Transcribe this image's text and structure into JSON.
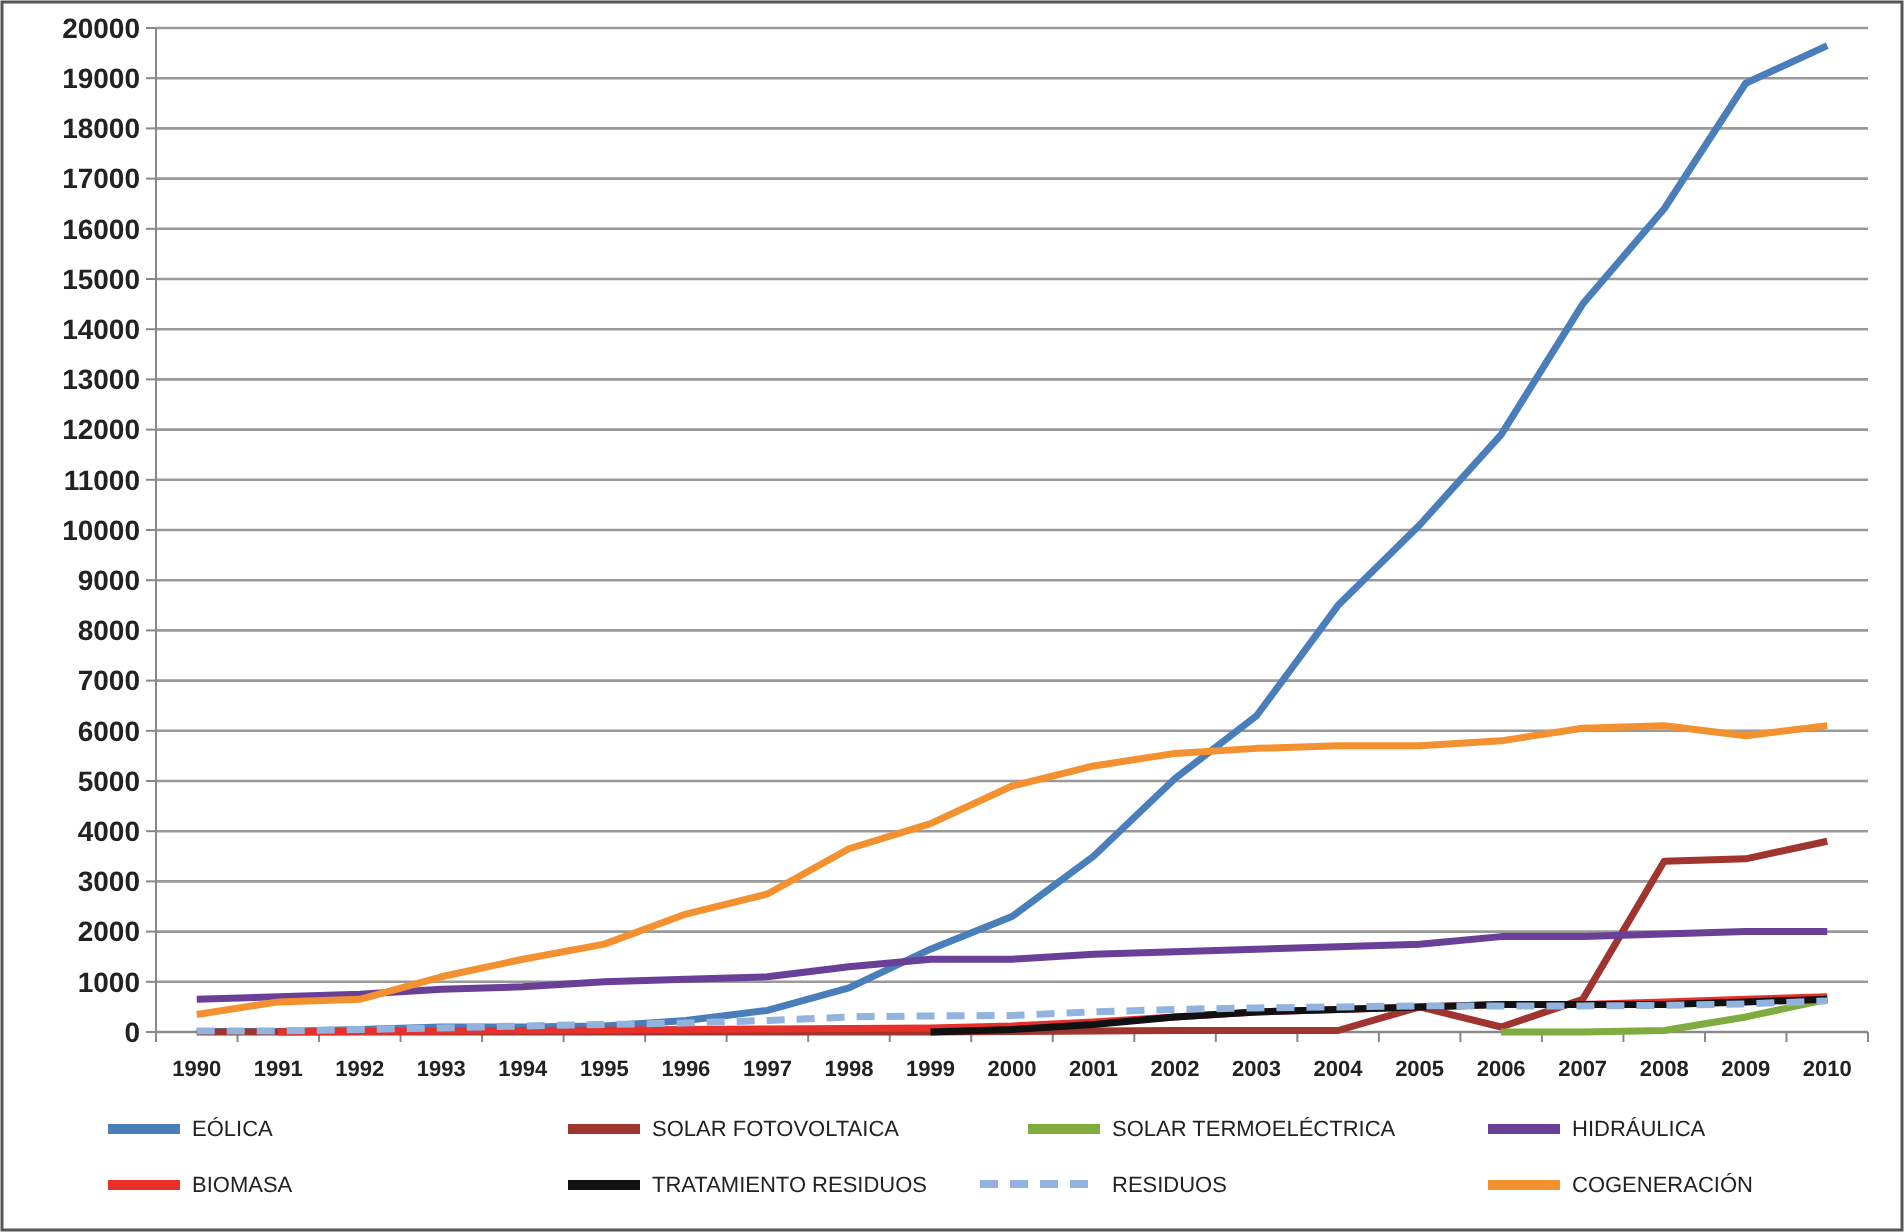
{
  "chart_data": {
    "type": "line",
    "categories": [
      "1990",
      "1991",
      "1992",
      "1993",
      "1994",
      "1995",
      "1996",
      "1997",
      "1998",
      "1999",
      "2000",
      "2001",
      "2002",
      "2003",
      "2004",
      "2005",
      "2006",
      "2007",
      "2008",
      "2009",
      "2010"
    ],
    "ylim": [
      0,
      20000
    ],
    "yticks": [
      0,
      1000,
      2000,
      3000,
      4000,
      5000,
      6000,
      7000,
      8000,
      9000,
      10000,
      11000,
      12000,
      13000,
      14000,
      15000,
      16000,
      17000,
      18000,
      19000,
      20000
    ],
    "grid": "y",
    "legend": "bottom",
    "marker": "none",
    "series": [
      {
        "name": "EÓLICA",
        "color": "#4a7ebb",
        "values": [
          10,
          10,
          50,
          100,
          100,
          120,
          230,
          430,
          880,
          1650,
          2300,
          3500,
          5050,
          6300,
          8500,
          10100,
          11900,
          14500,
          16400,
          18900,
          19650
        ]
      },
      {
        "name": "SOLAR FOTOVOLTAICA",
        "color": "#a0352f",
        "values": [
          0,
          0,
          0,
          0,
          0,
          0,
          0,
          0,
          0,
          0,
          10,
          20,
          30,
          30,
          30,
          500,
          100,
          650,
          3400,
          3450,
          3800
        ]
      },
      {
        "name": "SOLAR TERMOELÉCTRICA",
        "color": "#7fab3f",
        "values": [
          null,
          null,
          null,
          null,
          null,
          null,
          null,
          null,
          null,
          null,
          null,
          null,
          null,
          null,
          null,
          null,
          0,
          0,
          30,
          300,
          650
        ]
      },
      {
        "name": "HIDRÁULICA",
        "color": "#6a3f98",
        "values": [
          650,
          700,
          750,
          850,
          900,
          1000,
          1050,
          1100,
          1300,
          1450,
          1450,
          1550,
          1600,
          1650,
          1700,
          1750,
          1900,
          1900,
          1950,
          2000,
          2000
        ]
      },
      {
        "name": "BIOMASA",
        "color": "#e8302a",
        "values": [
          null,
          0,
          10,
          20,
          30,
          40,
          50,
          60,
          70,
          80,
          120,
          200,
          300,
          400,
          450,
          500,
          550,
          550,
          600,
          650,
          700
        ]
      },
      {
        "name": "TRATAMIENTO RESIDUOS",
        "color": "#111111",
        "values": [
          null,
          null,
          null,
          null,
          null,
          null,
          null,
          null,
          null,
          0,
          50,
          150,
          300,
          400,
          450,
          500,
          550,
          550,
          550,
          600,
          650
        ]
      },
      {
        "name": "RESIDUOS",
        "color": "#93b3df",
        "line_style": "dashed",
        "values": [
          20,
          20,
          50,
          80,
          120,
          150,
          180,
          230,
          300,
          320,
          330,
          400,
          450,
          480,
          500,
          520,
          520,
          520,
          530,
          560,
          620
        ]
      },
      {
        "name": "COGENERACIÓN",
        "color": "#f39130",
        "values": [
          350,
          600,
          650,
          1100,
          1450,
          1750,
          2350,
          2750,
          3650,
          4150,
          4900,
          5300,
          5550,
          5650,
          5700,
          5700,
          5800,
          6050,
          6100,
          5900,
          6100
        ]
      }
    ]
  }
}
